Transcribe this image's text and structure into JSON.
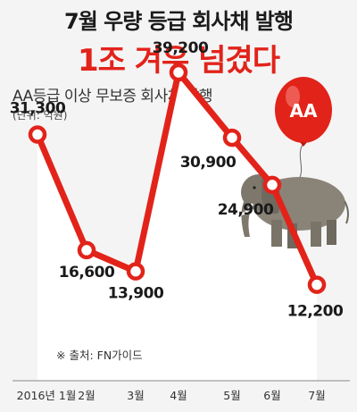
{
  "header": {
    "title": "7월 우량 등급 회사채 발행",
    "subtitle_red": "1조 겨우 넘겼다"
  },
  "chart_data": {
    "type": "line",
    "title": "AA등급 이상 무보증 회사채 발행",
    "unit": "(단위: 억원)",
    "categories": [
      "2016년 1월",
      "2월",
      "3월",
      "4월",
      "5월",
      "6월",
      "7월"
    ],
    "value_labels": [
      "31,300",
      "16,600",
      "13,900",
      "39,200",
      "30,900",
      "24,900",
      "12,200"
    ],
    "values": [
      31300,
      16600,
      13900,
      39200,
      30900,
      24900,
      12200
    ],
    "ylim": [
      0,
      45000
    ],
    "grid": false,
    "line_color": "#e2231a"
  },
  "balloon": {
    "label": "AA"
  },
  "source": "※ 출처: FN가이드",
  "colors": {
    "accent": "#e2231a",
    "background": "#f4f4f4",
    "area": "#ffffff"
  }
}
